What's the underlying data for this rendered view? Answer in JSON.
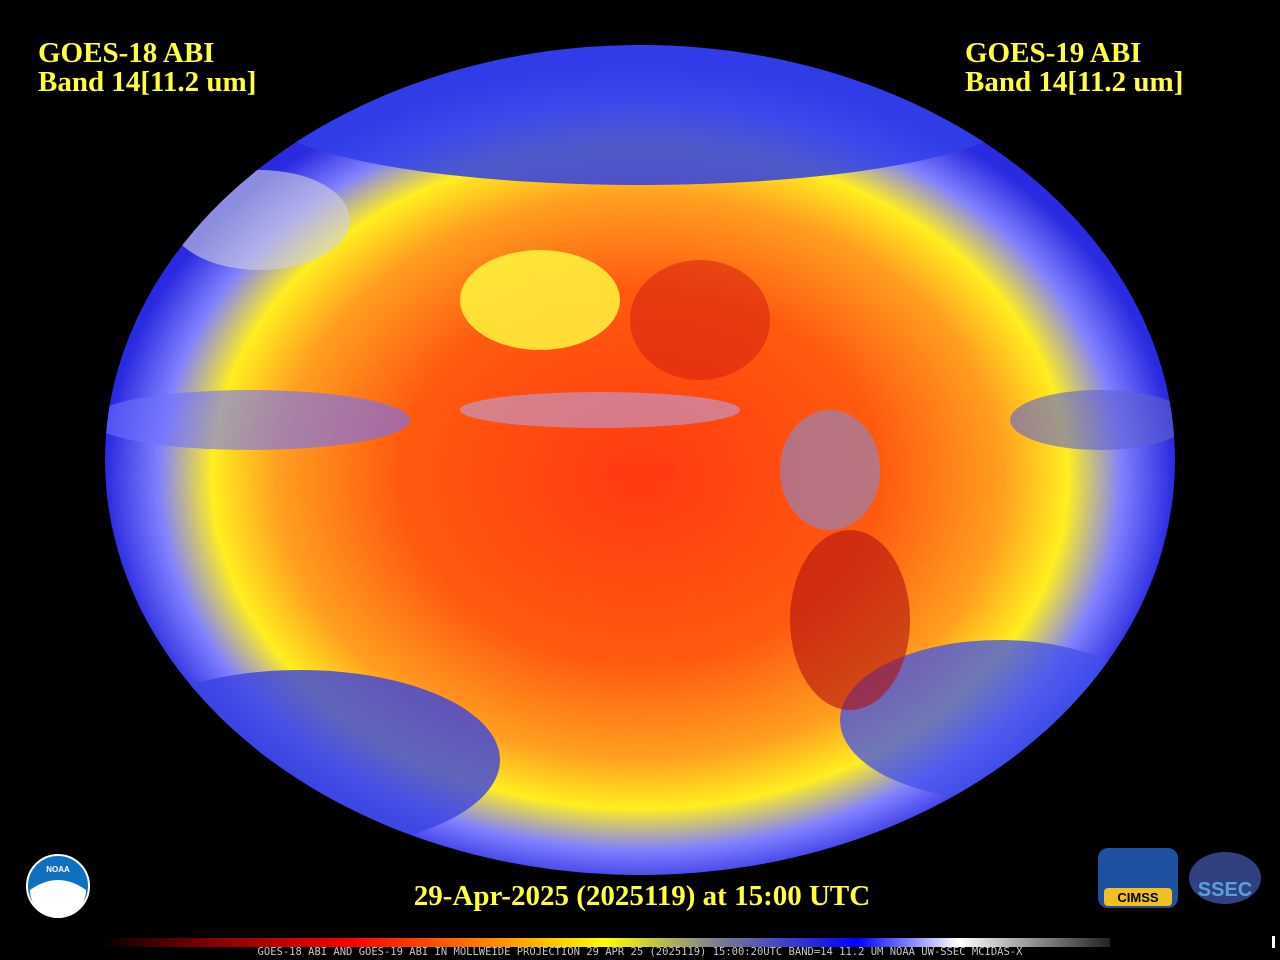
{
  "header": {
    "left": {
      "line1": "GOES-18 ABI",
      "line2": "Band 14[11.2 um]"
    },
    "right": {
      "line1": "GOES-19 ABI",
      "line2": "Band 14[11.2 um]"
    }
  },
  "timestamp": "29-Apr-2025 (2025119) at 15:00 UTC",
  "footer": "GOES-18 ABI AND GOES-19 ABI IN MOLLWEIDE PROJECTION 29 APR 25 (2025119) 15:00:20UTC BAND=14 11.2 UM NOAA UW-SSEC MCIDAS-X",
  "logos": {
    "noaa": "NOAA",
    "cimss": "CIMSS",
    "ssec": "SSEC"
  }
}
